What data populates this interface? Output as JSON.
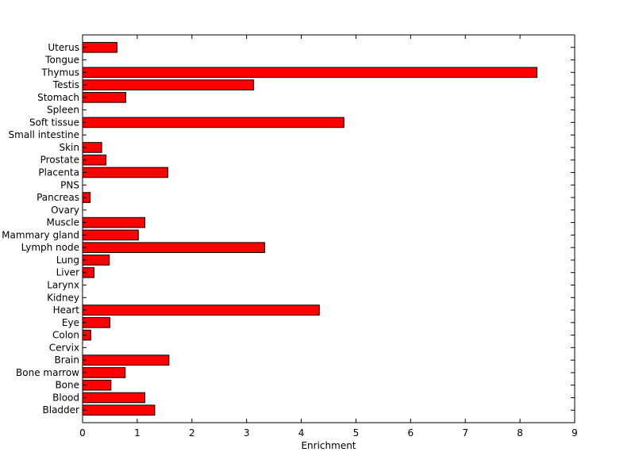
{
  "chart_data": {
    "type": "bar",
    "orientation": "horizontal",
    "title": "",
    "xlabel": "Enrichment",
    "ylabel": "",
    "xlim": [
      0,
      9
    ],
    "xticks": [
      0,
      1,
      2,
      3,
      4,
      5,
      6,
      7,
      8,
      9
    ],
    "grid": false,
    "bar_color": "#ff0000",
    "bar_edge_color": "#000000",
    "categories": [
      "Bladder",
      "Blood",
      "Bone",
      "Bone marrow",
      "Brain",
      "Cervix",
      "Colon",
      "Eye",
      "Heart",
      "Kidney",
      "Larynx",
      "Liver",
      "Lung",
      "Lymph node",
      "Mammary gland",
      "Muscle",
      "Ovary",
      "Pancreas",
      "PNS",
      "Placenta",
      "Prostate",
      "Skin",
      "Small intestine",
      "Soft tissue",
      "Spleen",
      "Stomach",
      "Testis",
      "Thymus",
      "Tongue",
      "Uterus"
    ],
    "values": [
      1.32,
      1.14,
      0.52,
      0.78,
      1.58,
      0,
      0.15,
      0.5,
      4.33,
      0,
      0,
      0.21,
      0.49,
      3.33,
      1.02,
      1.14,
      0,
      0.14,
      0,
      1.56,
      0.43,
      0.35,
      0,
      4.78,
      0,
      0.79,
      3.13,
      8.31,
      0,
      0.63
    ]
  }
}
